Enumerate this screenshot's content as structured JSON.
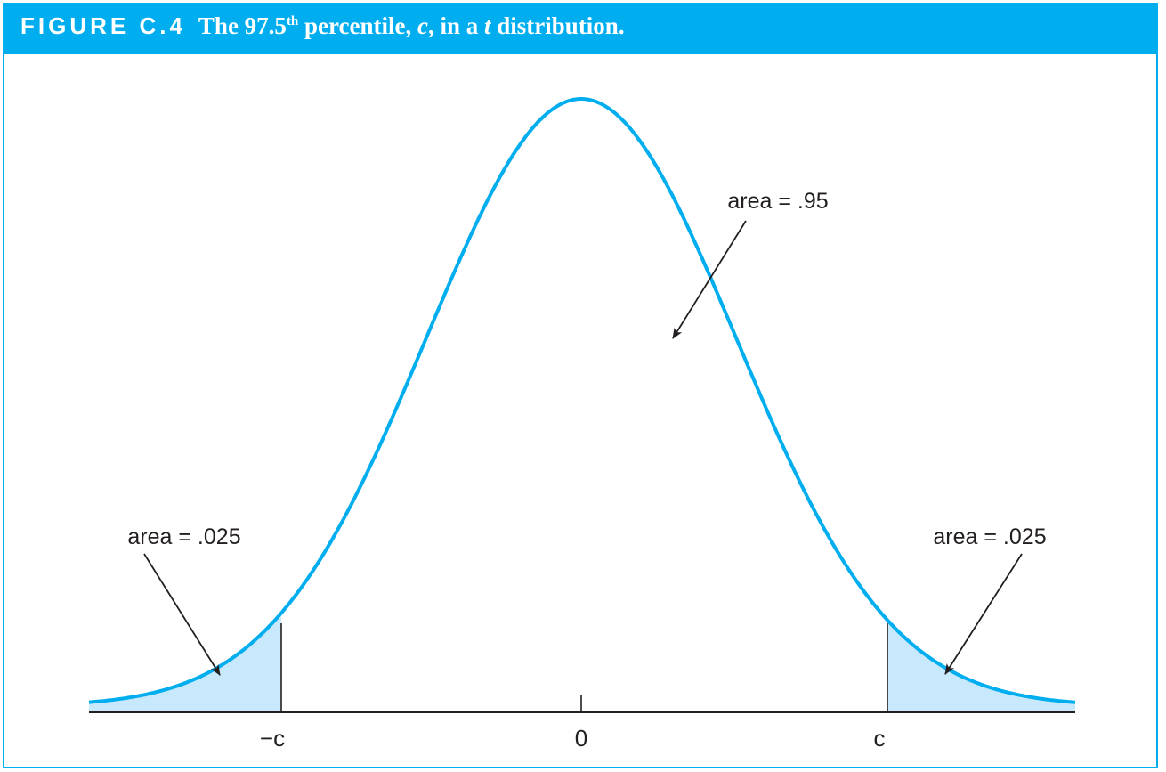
{
  "figure": {
    "label": "FIGURE C.4",
    "title_pre": "The 97.5",
    "title_sup": "th",
    "title_mid1": " percentile, ",
    "title_c": "c",
    "title_mid2": ", in a ",
    "title_t": "t",
    "title_post": " distribution."
  },
  "annotations": {
    "center_area": "area = .95",
    "left_tail_area": "area = .025",
    "right_tail_area": "area = .025"
  },
  "axis": {
    "tick_left": "−c",
    "tick_center": "0",
    "tick_right": "c"
  },
  "colors": {
    "accent": "#00aeef",
    "tail_fill": "#c8e9fb",
    "ink": "#231f20"
  },
  "distribution": {
    "type": "t",
    "percentile": 97.5,
    "central_area": 0.95,
    "tail_area": 0.025
  }
}
